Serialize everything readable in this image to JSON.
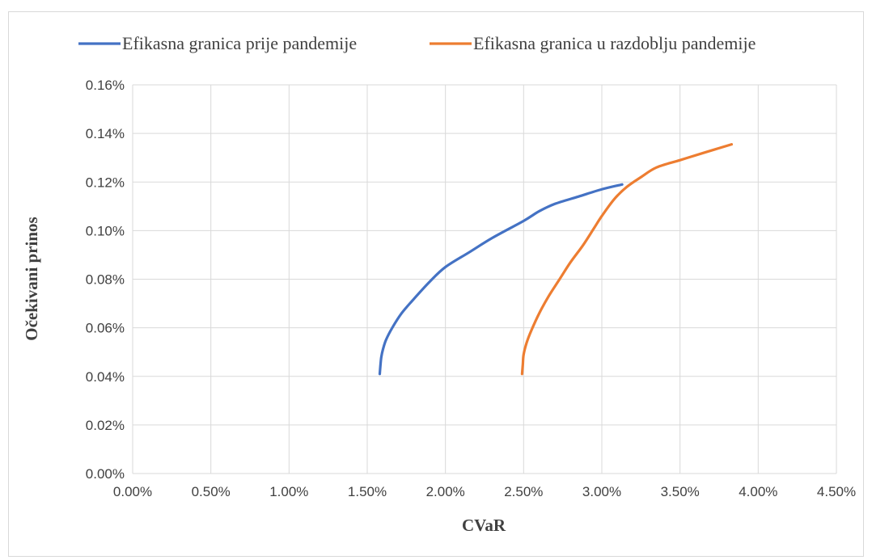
{
  "chart_data": {
    "type": "line",
    "title": "",
    "xlabel": "CVaR",
    "ylabel": "Očekivani prinos",
    "xlim": [
      0,
      0.045
    ],
    "ylim": [
      0,
      0.0016
    ],
    "x_tick_labels": [
      "0.00%",
      "0.50%",
      "1.00%",
      "1.50%",
      "2.00%",
      "2.50%",
      "3.00%",
      "3.50%",
      "4.00%",
      "4.50%"
    ],
    "y_tick_labels": [
      "0.00%",
      "0.02%",
      "0.04%",
      "0.06%",
      "0.08%",
      "0.10%",
      "0.12%",
      "0.14%",
      "0.16%"
    ],
    "grid": true,
    "legend_position": "top",
    "series": [
      {
        "name": "Efikasna granica prije pandemije",
        "color": "#4472C4",
        "x": [
          0.0158,
          0.01585,
          0.0159,
          0.016,
          0.0162,
          0.0166,
          0.0172,
          0.018,
          0.019,
          0.02,
          0.0215,
          0.023,
          0.025,
          0.026,
          0.027,
          0.0285,
          0.03,
          0.0313
        ],
        "y": [
          0.00041,
          0.00045,
          0.00048,
          0.00051,
          0.00055,
          0.0006,
          0.00066,
          0.00072,
          0.00079,
          0.00085,
          0.00091,
          0.00097,
          0.00104,
          0.00108,
          0.00111,
          0.00114,
          0.00117,
          0.00119
        ]
      },
      {
        "name": "Efikasna granica u razdoblju pandemije",
        "color": "#ED7D31",
        "x": [
          0.0249,
          0.02495,
          0.025,
          0.0252,
          0.0255,
          0.026,
          0.0266,
          0.0273,
          0.028,
          0.0288,
          0.0295,
          0.03,
          0.0308,
          0.0316,
          0.0325,
          0.0335,
          0.035,
          0.0365,
          0.0383
        ],
        "y": [
          0.00041,
          0.00045,
          0.00049,
          0.00054,
          0.00059,
          0.00066,
          0.00073,
          0.0008,
          0.00087,
          0.00094,
          0.00101,
          0.00106,
          0.00113,
          0.00118,
          0.00122,
          0.00126,
          0.00129,
          0.00132,
          0.001355
        ]
      }
    ]
  }
}
